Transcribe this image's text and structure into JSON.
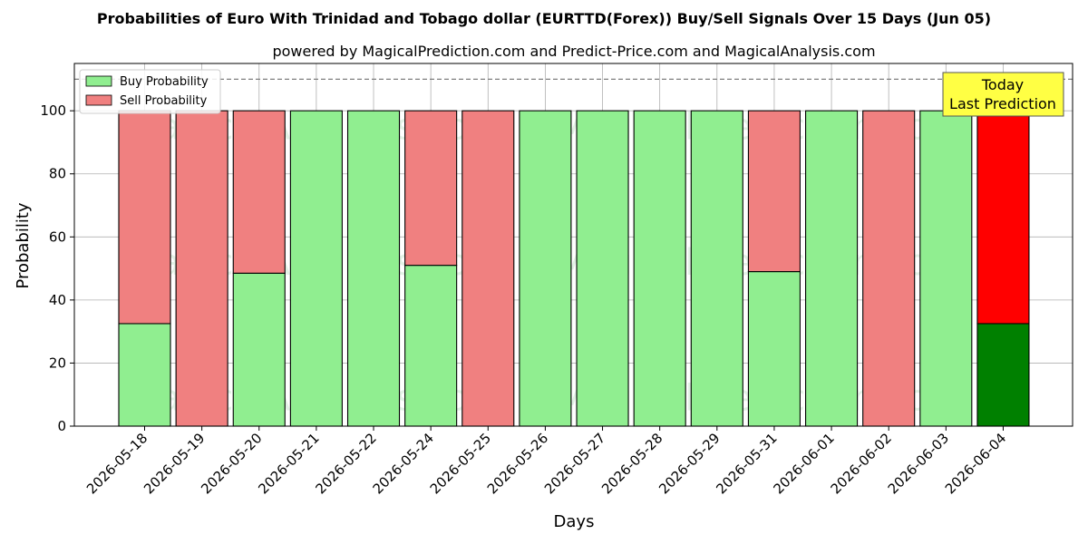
{
  "chart_data": {
    "type": "bar",
    "stacked": true,
    "title": "Probabilities of Euro With Trinidad and Tobago dollar (EURTTD(Forex)) Buy/Sell Signals Over 15 Days (Jun 05)",
    "subtitle": "powered by MagicalPrediction.com and Predict-Price.com and MagicalAnalysis.com",
    "xlabel": "Days",
    "ylabel": "Probability",
    "ylim": [
      0,
      115
    ],
    "yticks": [
      0,
      20,
      40,
      60,
      80,
      100
    ],
    "reference_line": 110,
    "grid": true,
    "legend_position": "top-left",
    "categories": [
      "2026-05-18",
      "2026-05-19",
      "2026-05-20",
      "2026-05-21",
      "2026-05-22",
      "2026-05-24",
      "2026-05-25",
      "2026-05-26",
      "2026-05-27",
      "2026-05-28",
      "2026-05-29",
      "2026-05-31",
      "2026-06-01",
      "2026-06-02",
      "2026-06-03",
      "2026-06-04"
    ],
    "series": [
      {
        "name": "Buy Probability",
        "color": "#90ee90",
        "values": [
          32.5,
          0,
          48.5,
          100,
          100,
          51,
          0,
          100,
          100,
          100,
          100,
          49,
          100,
          0,
          100,
          32.5
        ]
      },
      {
        "name": "Sell Probability",
        "color": "#f08080",
        "values": [
          67.5,
          100,
          51.5,
          0,
          0,
          49,
          100,
          0,
          0,
          0,
          0,
          51,
          0,
          100,
          0,
          67.5
        ]
      }
    ],
    "highlight": {
      "index": 15,
      "buy_color": "#008000",
      "sell_color": "#ff0000"
    },
    "annotation": {
      "line1": "Today",
      "line2": "Last Prediction",
      "color": "#ffff44"
    },
    "watermarks": [
      "MagicalAnalysis.com",
      "MagicalPrediction.com"
    ]
  }
}
